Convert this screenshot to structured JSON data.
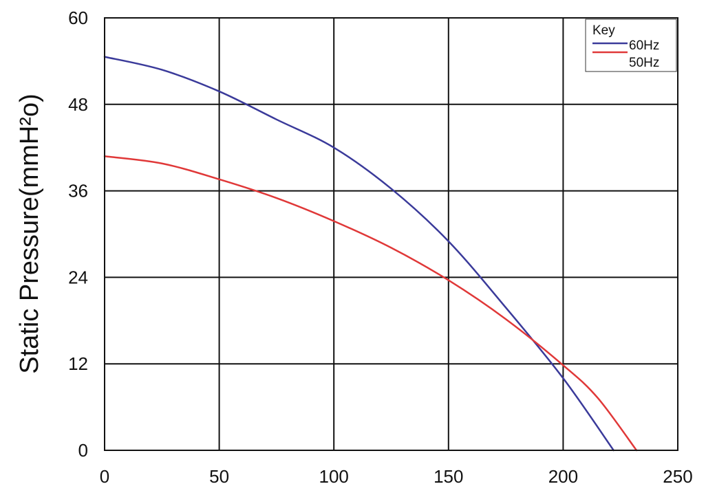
{
  "chart_data": {
    "type": "line",
    "title": "",
    "xlabel": "",
    "ylabel": "Static Pressure(mmH²o)",
    "xlim": [
      0,
      250
    ],
    "ylim": [
      0,
      60
    ],
    "x_ticks": [
      "0",
      "50",
      "100",
      "150",
      "200",
      "250"
    ],
    "y_ticks": [
      "0",
      "12",
      "24",
      "36",
      "48",
      "60"
    ],
    "grid": true,
    "legend": {
      "title": "Key",
      "position": "top-right"
    },
    "series": [
      {
        "name": "60Hz",
        "color": "#3a3a9a",
        "x": [
          0,
          25,
          50,
          75,
          100,
          125,
          150,
          175,
          200,
          222
        ],
        "y": [
          54.6,
          52.8,
          49.8,
          45.9,
          42.0,
          36.3,
          29.0,
          19.8,
          10.0,
          0
        ]
      },
      {
        "name": "50Hz",
        "color": "#e03838",
        "x": [
          0,
          25,
          50,
          75,
          100,
          125,
          150,
          175,
          200,
          215,
          232
        ],
        "y": [
          40.8,
          39.8,
          37.6,
          35.0,
          31.8,
          28.1,
          23.6,
          18.2,
          11.8,
          7.3,
          0
        ]
      }
    ]
  }
}
